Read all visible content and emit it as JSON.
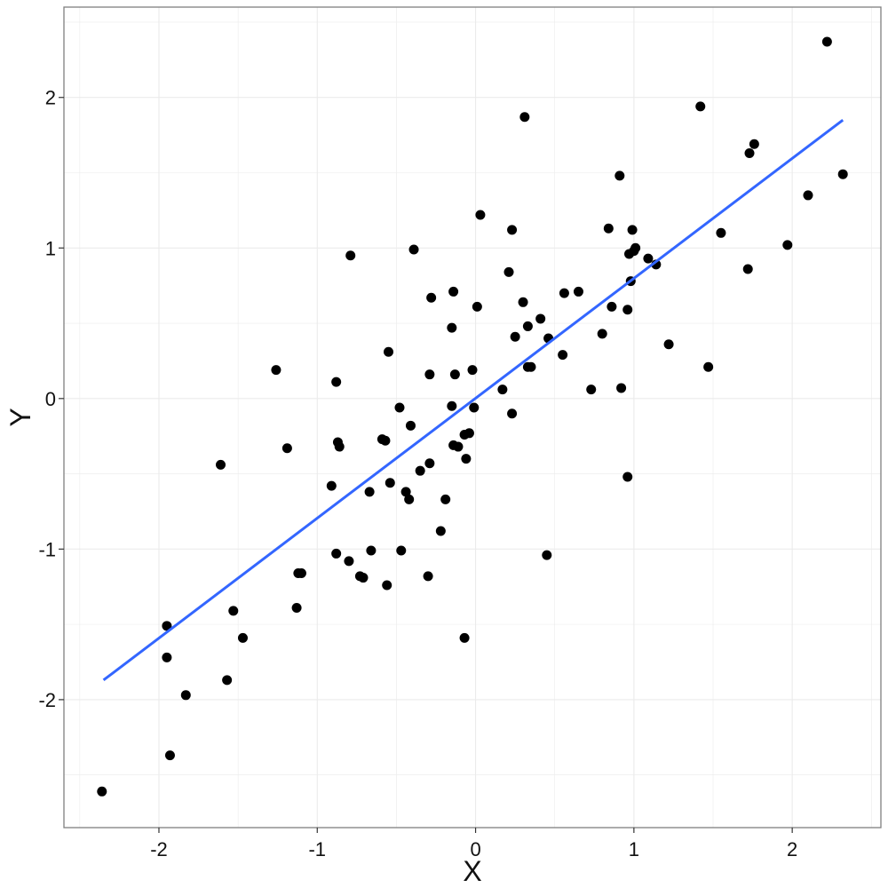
{
  "chart_data": {
    "type": "scatter",
    "xlabel": "X",
    "ylabel": "Y",
    "xlim": [
      -2.6,
      2.56
    ],
    "ylim": [
      -2.85,
      2.6
    ],
    "x_ticks": [
      -2,
      -1,
      0,
      1,
      2
    ],
    "y_ticks": [
      -2,
      -1,
      0,
      1,
      2
    ],
    "x_tick_labels": [
      "-2",
      "-1",
      "0",
      "1",
      "2"
    ],
    "y_tick_labels": [
      "-2",
      "-1",
      "0",
      "1",
      "2"
    ],
    "grid": true,
    "legend": "none",
    "colors": {
      "points": "#000000",
      "fit_line": "#3366ff",
      "grid": "#ebebeb",
      "panel_border": "#7f7f7f"
    },
    "fit_line": {
      "x": [
        -2.35,
        2.32
      ],
      "y": [
        -1.87,
        1.85
      ]
    },
    "points": [
      {
        "x": -2.36,
        "y": -2.61
      },
      {
        "x": -1.95,
        "y": -1.51
      },
      {
        "x": -1.95,
        "y": -1.72
      },
      {
        "x": -1.93,
        "y": -2.37
      },
      {
        "x": -1.83,
        "y": -1.97
      },
      {
        "x": -1.61,
        "y": -0.44
      },
      {
        "x": -1.57,
        "y": -1.87
      },
      {
        "x": -1.53,
        "y": -1.41
      },
      {
        "x": -1.47,
        "y": -1.59
      },
      {
        "x": -1.26,
        "y": 0.19
      },
      {
        "x": -1.19,
        "y": -0.33
      },
      {
        "x": -1.13,
        "y": -1.39
      },
      {
        "x": -1.12,
        "y": -1.16
      },
      {
        "x": -1.1,
        "y": -1.16
      },
      {
        "x": -0.91,
        "y": -0.58
      },
      {
        "x": -0.88,
        "y": 0.11
      },
      {
        "x": -0.88,
        "y": -1.03
      },
      {
        "x": -0.87,
        "y": -0.29
      },
      {
        "x": -0.86,
        "y": -0.32
      },
      {
        "x": -0.8,
        "y": -1.08
      },
      {
        "x": -0.79,
        "y": 0.95
      },
      {
        "x": -0.73,
        "y": -1.18
      },
      {
        "x": -0.71,
        "y": -1.19
      },
      {
        "x": -0.67,
        "y": -0.62
      },
      {
        "x": -0.66,
        "y": -1.01
      },
      {
        "x": -0.59,
        "y": -0.27
      },
      {
        "x": -0.57,
        "y": -0.28
      },
      {
        "x": -0.56,
        "y": -1.24
      },
      {
        "x": -0.55,
        "y": 0.31
      },
      {
        "x": -0.54,
        "y": -0.56
      },
      {
        "x": -0.48,
        "y": -0.06
      },
      {
        "x": -0.47,
        "y": -1.01
      },
      {
        "x": -0.44,
        "y": -0.62
      },
      {
        "x": -0.42,
        "y": -0.67
      },
      {
        "x": -0.41,
        "y": -0.18
      },
      {
        "x": -0.39,
        "y": 0.99
      },
      {
        "x": -0.35,
        "y": -0.48
      },
      {
        "x": -0.3,
        "y": -1.18
      },
      {
        "x": -0.29,
        "y": 0.16
      },
      {
        "x": -0.29,
        "y": -0.43
      },
      {
        "x": -0.28,
        "y": 0.67
      },
      {
        "x": -0.22,
        "y": -0.88
      },
      {
        "x": -0.19,
        "y": -0.67
      },
      {
        "x": -0.15,
        "y": 0.47
      },
      {
        "x": -0.15,
        "y": -0.05
      },
      {
        "x": -0.14,
        "y": -0.31
      },
      {
        "x": -0.14,
        "y": 0.71
      },
      {
        "x": -0.13,
        "y": 0.16
      },
      {
        "x": -0.11,
        "y": -0.32
      },
      {
        "x": -0.07,
        "y": -0.24
      },
      {
        "x": -0.07,
        "y": -1.59
      },
      {
        "x": -0.06,
        "y": -0.4
      },
      {
        "x": -0.04,
        "y": -0.23
      },
      {
        "x": -0.02,
        "y": 0.19
      },
      {
        "x": -0.01,
        "y": -0.06
      },
      {
        "x": 0.01,
        "y": 0.61
      },
      {
        "x": 0.03,
        "y": 1.22
      },
      {
        "x": 0.17,
        "y": 0.06
      },
      {
        "x": 0.21,
        "y": 0.84
      },
      {
        "x": 0.23,
        "y": -0.1
      },
      {
        "x": 0.23,
        "y": 1.12
      },
      {
        "x": 0.25,
        "y": 0.41
      },
      {
        "x": 0.3,
        "y": 0.64
      },
      {
        "x": 0.31,
        "y": 1.87
      },
      {
        "x": 0.33,
        "y": 0.48
      },
      {
        "x": 0.33,
        "y": 0.21
      },
      {
        "x": 0.35,
        "y": 0.21
      },
      {
        "x": 0.41,
        "y": 0.53
      },
      {
        "x": 0.45,
        "y": -1.04
      },
      {
        "x": 0.46,
        "y": 0.4
      },
      {
        "x": 0.55,
        "y": 0.29
      },
      {
        "x": 0.56,
        "y": 0.7
      },
      {
        "x": 0.65,
        "y": 0.71
      },
      {
        "x": 0.73,
        "y": 0.06
      },
      {
        "x": 0.8,
        "y": 0.43
      },
      {
        "x": 0.84,
        "y": 1.13
      },
      {
        "x": 0.86,
        "y": 0.61
      },
      {
        "x": 0.91,
        "y": 1.48
      },
      {
        "x": 0.92,
        "y": 0.07
      },
      {
        "x": 0.96,
        "y": 0.59
      },
      {
        "x": 0.96,
        "y": -0.52
      },
      {
        "x": 0.97,
        "y": 0.96
      },
      {
        "x": 0.98,
        "y": 0.78
      },
      {
        "x": 0.99,
        "y": 1.12
      },
      {
        "x": 1.0,
        "y": 0.98
      },
      {
        "x": 1.01,
        "y": 1.0
      },
      {
        "x": 1.09,
        "y": 0.93
      },
      {
        "x": 1.14,
        "y": 0.89
      },
      {
        "x": 1.22,
        "y": 0.36
      },
      {
        "x": 1.42,
        "y": 1.94
      },
      {
        "x": 1.47,
        "y": 0.21
      },
      {
        "x": 1.55,
        "y": 1.1
      },
      {
        "x": 1.72,
        "y": 0.86
      },
      {
        "x": 1.73,
        "y": 1.63
      },
      {
        "x": 1.76,
        "y": 1.69
      },
      {
        "x": 1.97,
        "y": 1.02
      },
      {
        "x": 2.1,
        "y": 1.35
      },
      {
        "x": 2.22,
        "y": 2.37
      },
      {
        "x": 2.32,
        "y": 1.49
      }
    ]
  }
}
